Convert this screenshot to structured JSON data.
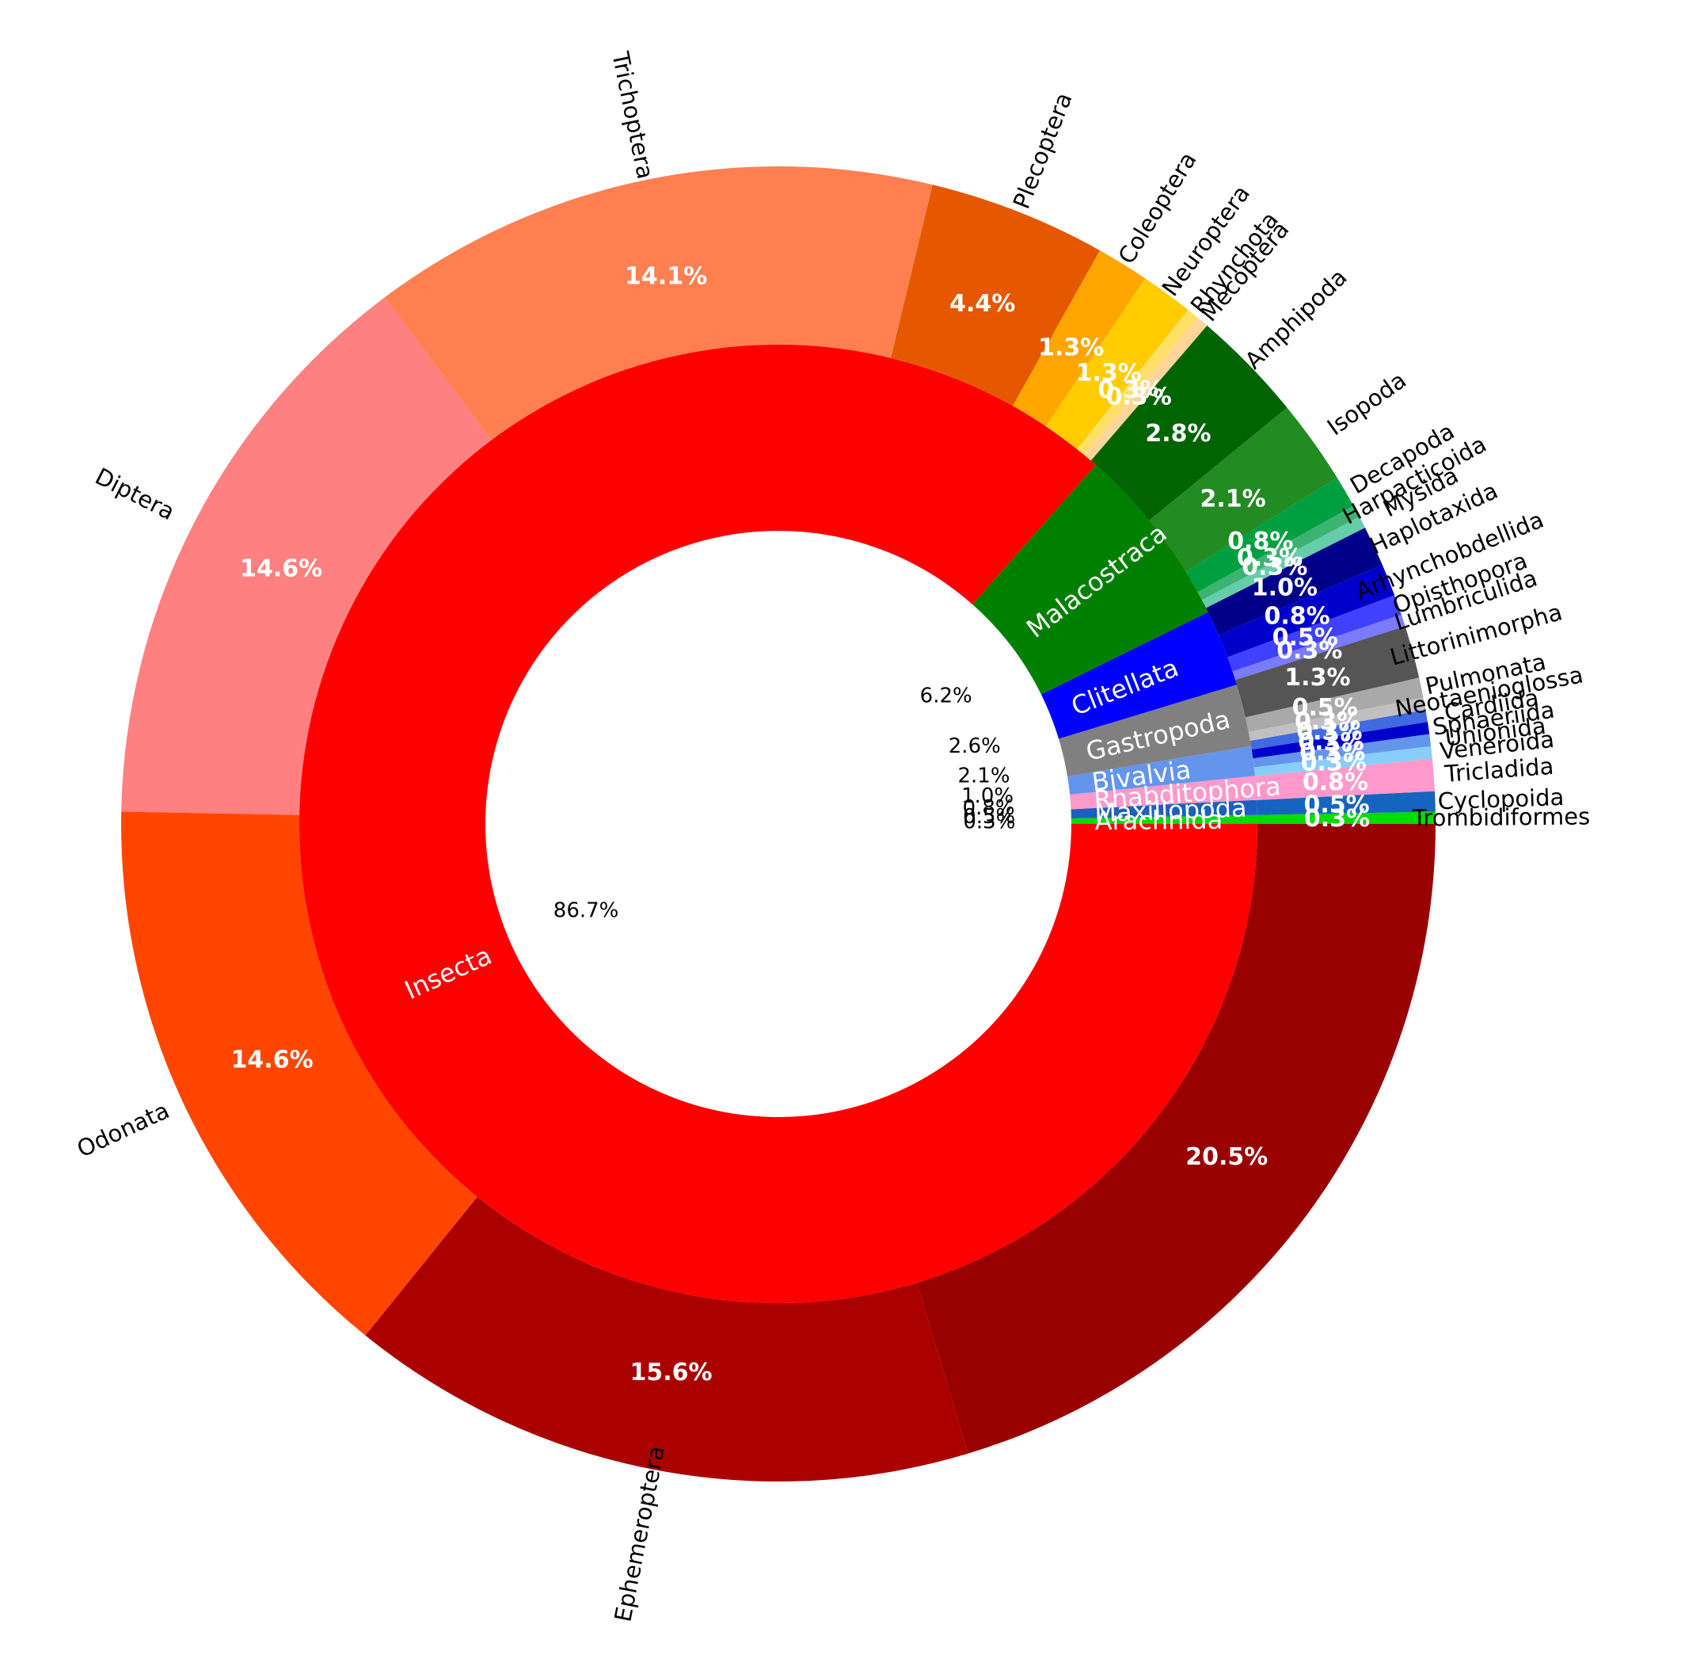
{
  "chart_data": {
    "type": "pie",
    "style": "nested donut (sunburst)",
    "colors": {
      "background": "#ffffff",
      "outer_percent_label": "#ffffff",
      "inner_name_label": "#ffffff",
      "outer_name_label": "#000000",
      "inner_percent_label": "#000000"
    },
    "inner_ring": [
      {
        "name": "Arachnida",
        "value": 0.3,
        "pct_label": "0.3%",
        "color": "#00dd00"
      },
      {
        "name": "Maxillopoda",
        "value": 0.5,
        "pct_label": "0.5%",
        "color": "#1e5fbf"
      },
      {
        "name": "Rhabditophora",
        "value": 0.8,
        "pct_label": "0.8%",
        "color": "#ff99cc"
      },
      {
        "name": "Bivalvia",
        "value": 1.0,
        "pct_label": "1.0%",
        "color": "#6495ed"
      },
      {
        "name": "Gastropoda",
        "value": 2.1,
        "pct_label": "2.1%",
        "color": "#808080"
      },
      {
        "name": "Clitellata",
        "value": 2.6,
        "pct_label": "2.6%",
        "color": "#0000ff"
      },
      {
        "name": "Malacostraca",
        "value": 6.2,
        "pct_label": "6.2%",
        "color": "#008000"
      },
      {
        "name": "Insecta",
        "value": 86.7,
        "pct_label": "86.7%",
        "color": "#ff0000"
      }
    ],
    "outer_ring": [
      {
        "name": "Trombidiformes",
        "value": 0.3,
        "pct_label": "0.3%",
        "color": "#00dd00"
      },
      {
        "name": "Cyclopoida",
        "value": 0.5,
        "pct_label": "0.5%",
        "color": "#1565c0"
      },
      {
        "name": "Tricladida",
        "value": 0.8,
        "pct_label": "0.8%",
        "color": "#ff99cc"
      },
      {
        "name": "Veneroida",
        "value": 0.3,
        "pct_label": "0.3%",
        "color": "#87cefa"
      },
      {
        "name": "Unionida",
        "value": 0.3,
        "pct_label": "0.3%",
        "color": "#6495ed"
      },
      {
        "name": "Sphaeriida",
        "value": 0.3,
        "pct_label": "0.3%",
        "color": "#0000cd"
      },
      {
        "name": "Cardiida",
        "value": 0.3,
        "pct_label": "0.3%",
        "color": "#4169e1"
      },
      {
        "name": "Neotaenioglossa",
        "value": 0.3,
        "pct_label": "0.3%",
        "color": "#c0c0c0"
      },
      {
        "name": "Pulmonata",
        "value": 0.5,
        "pct_label": "0.5%",
        "color": "#a9a9a9"
      },
      {
        "name": "Littorinimorpha",
        "value": 1.3,
        "pct_label": "1.3%",
        "color": "#555555"
      },
      {
        "name": "Lumbriculida",
        "value": 0.3,
        "pct_label": "0.3%",
        "color": "#7b7bff"
      },
      {
        "name": "Opisthopora",
        "value": 0.5,
        "pct_label": "0.5%",
        "color": "#4040ff"
      },
      {
        "name": "Arhynchobdellida",
        "value": 0.8,
        "pct_label": "0.8%",
        "color": "#0000cd"
      },
      {
        "name": "Haplotaxida",
        "value": 1.0,
        "pct_label": "1.0%",
        "color": "#00008b"
      },
      {
        "name": "Mysida",
        "value": 0.3,
        "pct_label": "0.3%",
        "color": "#66cdaa"
      },
      {
        "name": "Harpacticoida",
        "value": 0.3,
        "pct_label": "0.3%",
        "color": "#3cb371"
      },
      {
        "name": "Decapoda",
        "value": 0.8,
        "pct_label": "0.8%",
        "color": "#00a040"
      },
      {
        "name": "Isopoda",
        "value": 2.1,
        "pct_label": "2.1%",
        "color": "#228b22"
      },
      {
        "name": "Amphipoda",
        "value": 2.8,
        "pct_label": "2.8%",
        "color": "#006400"
      },
      {
        "name": "Mecoptera",
        "value": 0.3,
        "pct_label": "0.3%",
        "color": "#ffd59a"
      },
      {
        "name": "Rhynchota",
        "value": 0.3,
        "pct_label": "0.3%",
        "color": "#ffe066"
      },
      {
        "name": "Neuroptera",
        "value": 1.3,
        "pct_label": "1.3%",
        "color": "#ffcc00"
      },
      {
        "name": "Coleoptera",
        "value": 1.3,
        "pct_label": "1.3%",
        "color": "#ffa500"
      },
      {
        "name": "Plecoptera",
        "value": 4.4,
        "pct_label": "4.4%",
        "color": "#e55800"
      },
      {
        "name": "Trichoptera",
        "value": 14.1,
        "pct_label": "14.1%",
        "color": "#ff7f50"
      },
      {
        "name": "Diptera",
        "value": 14.6,
        "pct_label": "14.6%",
        "color": "#ff8080"
      },
      {
        "name": "Odonata",
        "value": 14.6,
        "pct_label": "14.6%",
        "color": "#ff4500"
      },
      {
        "name": "Ephemeroptera",
        "value": 15.6,
        "pct_label": "15.6%",
        "color": "#aa0000"
      },
      {
        "name": "",
        "value": 20.5,
        "pct_label": "20.5%",
        "color": "#990000"
      }
    ]
  }
}
